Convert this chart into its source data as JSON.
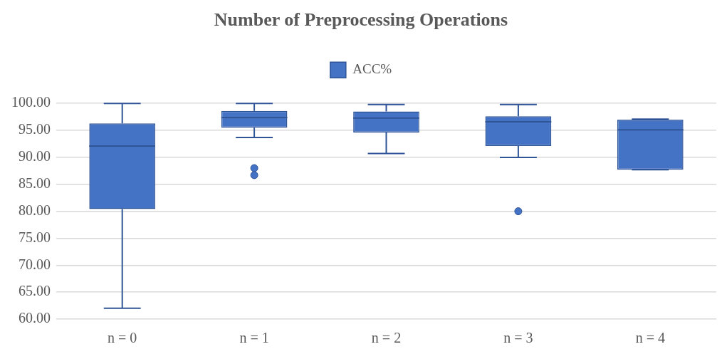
{
  "chart_data": {
    "type": "box",
    "title": "Number of Preprocessing Operations",
    "categories": [
      "n = 0",
      "n = 1",
      "n = 2",
      "n = 3",
      "n = 4"
    ],
    "series": [
      {
        "name": "ACC%",
        "color": "#4472c4",
        "boxes": [
          {
            "low": 62.0,
            "q1": 80.4,
            "median": 92.1,
            "q3": 96.3,
            "high": 100.0
          },
          {
            "low": 93.7,
            "q1": 95.5,
            "median": 97.4,
            "q3": 98.6,
            "high": 100.0,
            "outliers": [
              88.0,
              86.7
            ]
          },
          {
            "low": 90.7,
            "q1": 94.6,
            "median": 97.3,
            "q3": 98.5,
            "high": 99.8
          },
          {
            "low": 90.0,
            "q1": 92.1,
            "median": 96.6,
            "q3": 97.6,
            "high": 99.8,
            "outliers": [
              80.0
            ]
          },
          {
            "low": 87.7,
            "q1": 87.7,
            "median": 95.1,
            "q3": 97.0,
            "high": 97.1
          }
        ]
      }
    ],
    "ylim": [
      60,
      100
    ],
    "yticks": [
      {
        "value": 60,
        "label": "60.00"
      },
      {
        "value": 65,
        "label": "65.00"
      },
      {
        "value": 70,
        "label": "70.00"
      },
      {
        "value": 75,
        "label": "75.00"
      },
      {
        "value": 80,
        "label": "80.00"
      },
      {
        "value": 85,
        "label": "85.00"
      },
      {
        "value": 90,
        "label": "90.00"
      },
      {
        "value": 95,
        "label": "95.00"
      },
      {
        "value": 100,
        "label": "100.00"
      }
    ],
    "grid": "y",
    "legend": "top"
  }
}
